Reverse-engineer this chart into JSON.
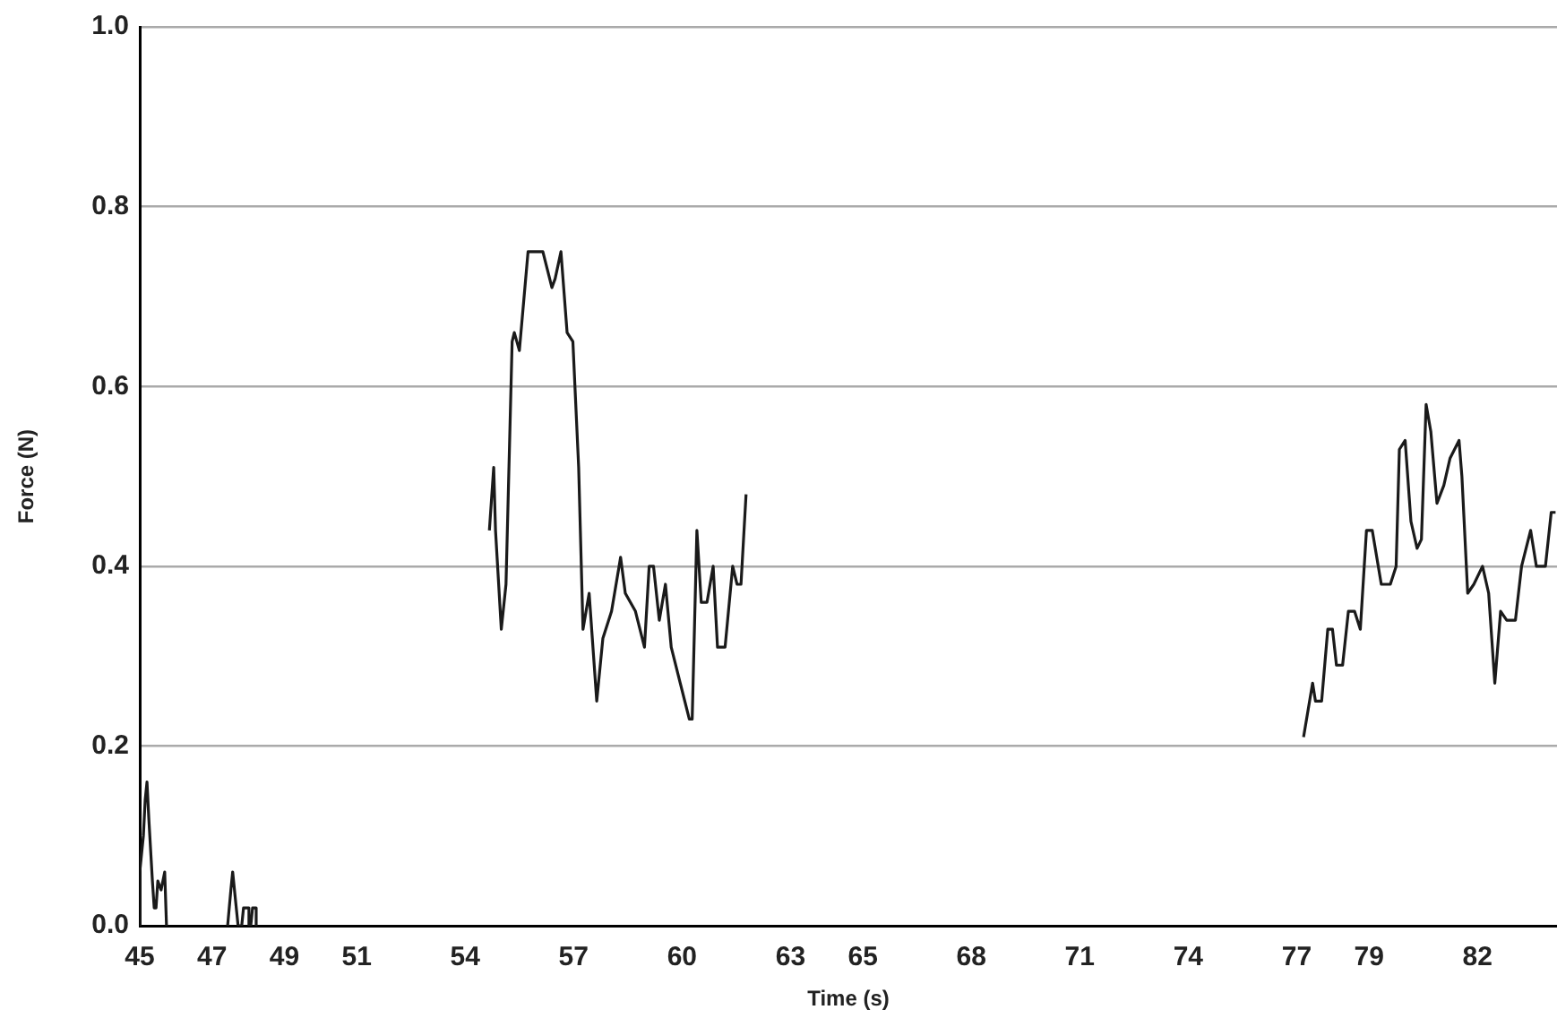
{
  "chart_data": {
    "type": "line",
    "xlabel": "Time (s)",
    "ylabel": "Force (N)",
    "xlim": [
      45,
      84.2
    ],
    "xticks": [
      45,
      47,
      49,
      51,
      54,
      57,
      60,
      63,
      65,
      68,
      71,
      74,
      77,
      79,
      82
    ],
    "ylim": [
      0,
      1
    ],
    "yticks": [
      {
        "value": 0,
        "label": "0.0"
      },
      {
        "value": 0.2,
        "label": "0.2"
      },
      {
        "value": 0.4,
        "label": "0.4"
      },
      {
        "value": 0.6,
        "label": "0.6"
      },
      {
        "value": 0.8,
        "label": "0.8"
      },
      {
        "value": 1,
        "label": "1.0"
      }
    ],
    "grid": "y",
    "legend": false,
    "marker": "none",
    "line_style": "solid",
    "series": [
      {
        "color": "#1a1a1a",
        "x": [
          45.0,
          45.0,
          45.1,
          45.15,
          45.2,
          45.25,
          45.35,
          45.4,
          45.45,
          45.5,
          45.59,
          45.69,
          45.74,
          46.5,
          47.43,
          47.52,
          47.57,
          47.62,
          47.72,
          47.82,
          47.87,
          48.02,
          48.02,
          48.07,
          48.12,
          48.22,
          48.22,
          51.5,
          54.67,
          54.79,
          54.84,
          55.0,
          55.13,
          55.3,
          55.36,
          55.5,
          55.74,
          56.15,
          56.4,
          56.49,
          56.65,
          56.82,
          56.98,
          57.14,
          57.26,
          57.43,
          57.64,
          57.81,
          58.05,
          58.3,
          58.43,
          58.71,
          58.96,
          59.09,
          59.21,
          59.37,
          59.54,
          59.7,
          59.95,
          60.2,
          60.28,
          60.41,
          60.53,
          60.69,
          60.86,
          60.98,
          61.19,
          61.4,
          61.52,
          61.63,
          61.77,
          70.0,
          77.19,
          77.44,
          77.52,
          77.69,
          77.86,
          77.99,
          78.1,
          78.27,
          78.43,
          78.6,
          78.76,
          78.93,
          79.09,
          79.34,
          79.59,
          79.75,
          79.84,
          80.0,
          80.16,
          80.33,
          80.45,
          80.58,
          80.71,
          80.88,
          81.07,
          81.24,
          81.49,
          81.57,
          81.73,
          81.9,
          82.14,
          82.31,
          82.48,
          82.64,
          82.81,
          83.05,
          83.22,
          83.47,
          83.63,
          83.88,
          84.04,
          84.16
        ],
        "values": [
          0,
          0.06,
          0.1,
          0.14,
          0.16,
          0.12,
          0.05,
          0.02,
          0.02,
          0.05,
          0.04,
          0.06,
          0,
          null,
          0,
          0.04,
          0.06,
          0.04,
          0,
          0,
          0.02,
          0.02,
          0,
          0,
          0.02,
          0.02,
          0,
          null,
          0.44,
          0.51,
          0.44,
          0.33,
          0.38,
          0.65,
          0.66,
          0.64,
          0.75,
          0.75,
          0.71,
          0.72,
          0.75,
          0.66,
          0.65,
          0.51,
          0.33,
          0.37,
          0.25,
          0.32,
          0.35,
          0.41,
          0.37,
          0.35,
          0.31,
          0.4,
          0.4,
          0.34,
          0.38,
          0.31,
          0.27,
          0.23,
          0.23,
          0.44,
          0.36,
          0.36,
          0.4,
          0.31,
          0.31,
          0.4,
          0.38,
          0.38,
          0.48,
          null,
          0.21,
          0.27,
          0.25,
          0.25,
          0.33,
          0.33,
          0.29,
          0.29,
          0.35,
          0.35,
          0.33,
          0.44,
          0.44,
          0.38,
          0.38,
          0.4,
          0.53,
          0.54,
          0.45,
          0.42,
          0.43,
          0.58,
          0.55,
          0.47,
          0.49,
          0.52,
          0.54,
          0.5,
          0.37,
          0.38,
          0.4,
          0.37,
          0.27,
          0.35,
          0.34,
          0.34,
          0.4,
          0.44,
          0.4,
          0.4,
          0.46,
          0.46
        ]
      }
    ]
  }
}
